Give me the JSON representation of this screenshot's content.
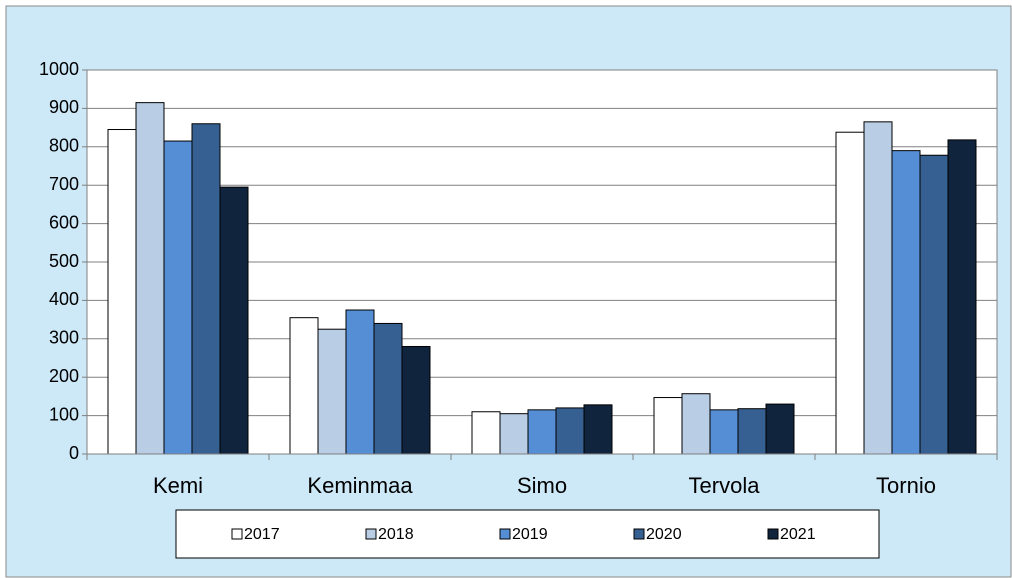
{
  "chart_data": {
    "type": "bar",
    "categories": [
      "Kemi",
      "Keminmaa",
      "Simo",
      "Tervola",
      "Tornio"
    ],
    "series": [
      {
        "name": "2017",
        "color": "#ffffff",
        "values": [
          845,
          355,
          110,
          147,
          838
        ]
      },
      {
        "name": "2018",
        "color": "#b9cde5",
        "values": [
          915,
          325,
          105,
          157,
          865
        ]
      },
      {
        "name": "2019",
        "color": "#558ed5",
        "values": [
          815,
          375,
          115,
          115,
          790
        ]
      },
      {
        "name": "2020",
        "color": "#376092",
        "values": [
          860,
          340,
          120,
          118,
          778
        ]
      },
      {
        "name": "2021",
        "color": "#10243e",
        "values": [
          695,
          280,
          128,
          130,
          818
        ]
      }
    ],
    "ylim": [
      0,
      1000
    ],
    "yticks": [
      0,
      100,
      200,
      300,
      400,
      500,
      600,
      700,
      800,
      900,
      1000
    ],
    "grid": true,
    "legend": "bottom"
  }
}
